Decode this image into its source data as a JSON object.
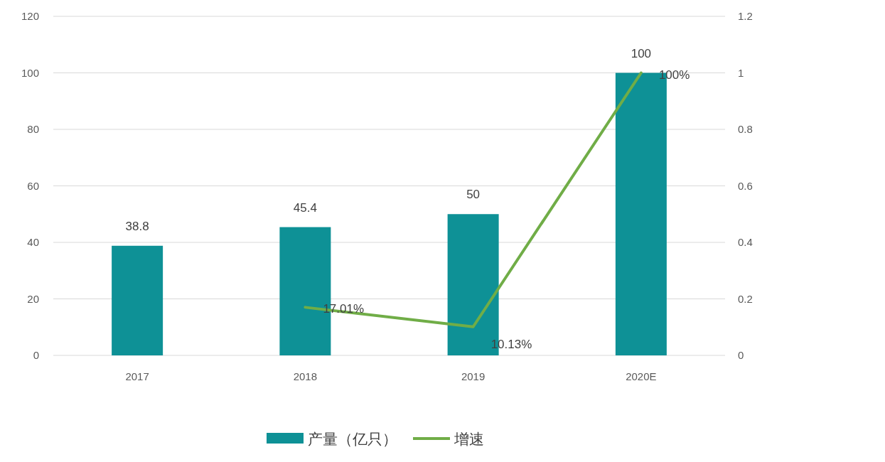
{
  "chart_data": {
    "type": "bar",
    "categories": [
      "2017",
      "2018",
      "2019",
      "2020E"
    ],
    "series": [
      {
        "name": "产量（亿只）",
        "color": "#0e9196",
        "values": [
          38.8,
          45.4,
          50,
          100
        ],
        "value_labels": [
          "38.8",
          "45.4",
          "50",
          "100"
        ]
      },
      {
        "name": "增速",
        "type": "line",
        "axis": "y2",
        "color": "#70ad47",
        "values": [
          null,
          0.1701,
          0.1013,
          1
        ],
        "value_labels": [
          null,
          "17.01%",
          "10.13%",
          "100%"
        ]
      }
    ],
    "ylim": [
      0,
      120
    ],
    "yticks": [
      0,
      20,
      40,
      60,
      80,
      100,
      120
    ],
    "y2lim": [
      0,
      1.2
    ],
    "y2ticks": [
      0,
      0.2,
      0.4,
      0.6,
      0.8,
      1,
      1.2
    ],
    "grid": "y",
    "legend": "bottom"
  }
}
